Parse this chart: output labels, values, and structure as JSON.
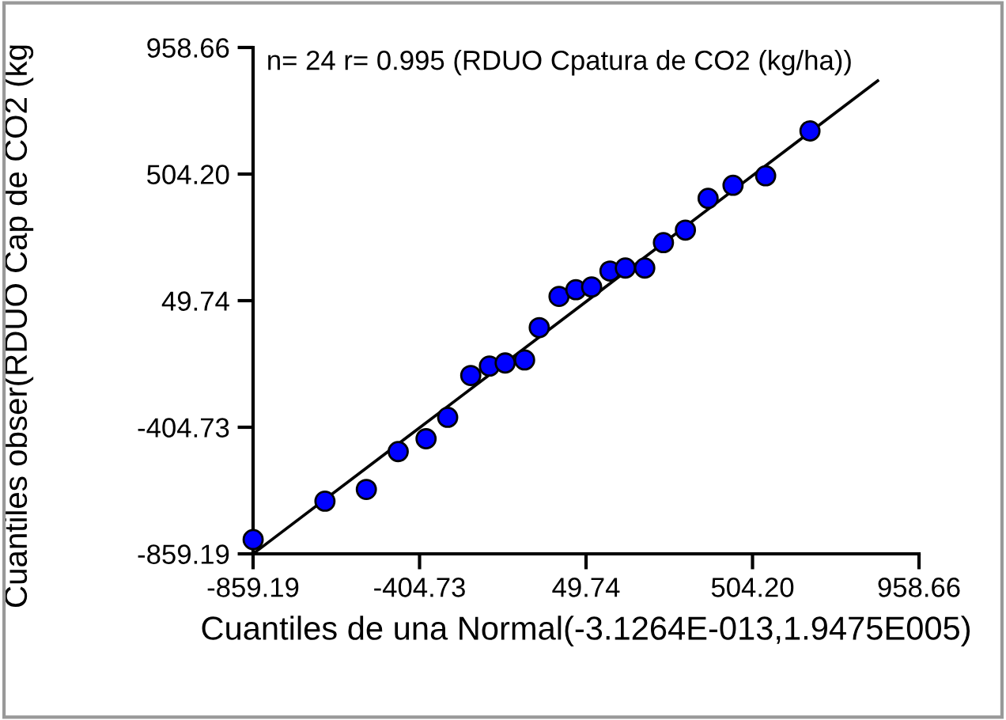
{
  "chart_data": {
    "type": "scatter",
    "xlabel": "Cuantiles de una Normal(-3.1264E-013,1.9475E005)",
    "ylabel": "Cuantiles obser(RDUO Cap de CO2 (kg",
    "annotations": [
      "n= 24 r= 0.995 (RDUO Cpatura de CO2 (kg/ha))"
    ],
    "xlim": [
      -859.19,
      958.66
    ],
    "ylim": [
      -859.19,
      958.66
    ],
    "xticks": [
      {
        "value": -859.19,
        "label": "-859.19"
      },
      {
        "value": -404.73,
        "label": "-404.73"
      },
      {
        "value": 49.74,
        "label": "49.74"
      },
      {
        "value": 504.2,
        "label": "504.20"
      },
      {
        "value": 958.66,
        "label": "958.66"
      }
    ],
    "yticks": [
      {
        "value": -859.19,
        "label": "-859.19"
      },
      {
        "value": -404.73,
        "label": "-404.73"
      },
      {
        "value": 49.74,
        "label": "49.74"
      },
      {
        "value": 504.2,
        "label": "504.20"
      },
      {
        "value": 958.66,
        "label": "958.66"
      }
    ],
    "grid": false,
    "marker": "circle",
    "series": [
      {
        "color": "#0000ff",
        "x": [
          -859,
          -663,
          -550,
          -463,
          -387,
          -328,
          -265,
          -214,
          -171,
          -118,
          -78,
          -24,
          22,
          65,
          115,
          157,
          210,
          261,
          321,
          383,
          451,
          540,
          661
        ],
        "values": [
          -808,
          -670,
          -628,
          -492,
          -446,
          -369,
          -219,
          -185,
          -174,
          -163,
          -47,
          65,
          89,
          99,
          156,
          167,
          167,
          258,
          303,
          417,
          464,
          498,
          659
        ]
      },
      {
        "type": "line",
        "color": "#000000",
        "x": [
          -859.19,
          846
        ],
        "values": [
          -859,
          839
        ],
        "marker": "none",
        "line_style": "solid"
      }
    ]
  }
}
